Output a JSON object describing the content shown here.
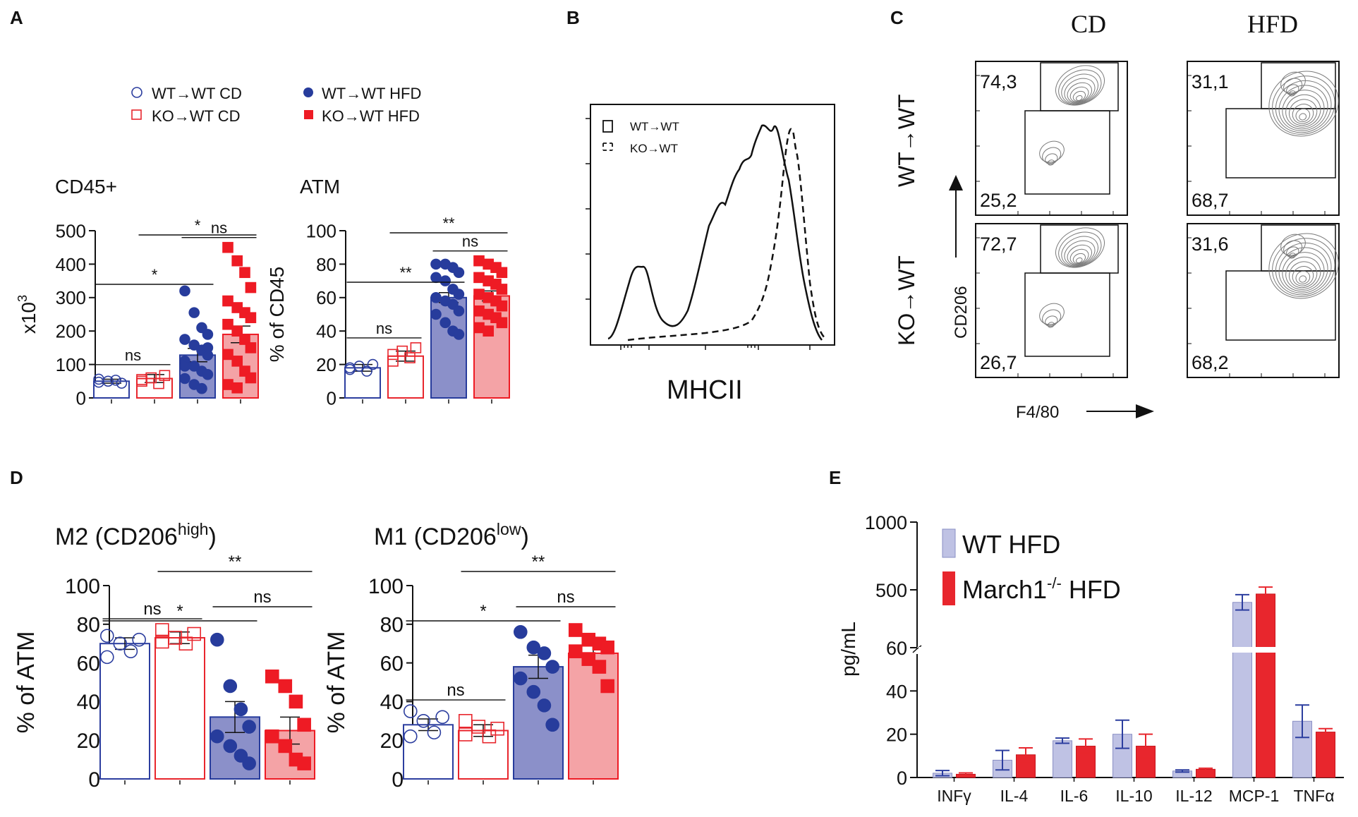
{
  "colors": {
    "wt_cd": "#2c3e9f",
    "ko_cd": "#e8262d",
    "wt_hfd_point": "#273c9c",
    "wt_hfd_fill": "#8b90c9",
    "ko_hfd_point": "#ee1b24",
    "ko_hfd_fill": "#f4a3a6",
    "e_wt_fill": "#bfc2e4",
    "e_march_fill": "#e8262d",
    "e_wt_err": "#2c3e9f",
    "e_march_err": "#e8262d"
  },
  "panels": {
    "A": "A",
    "B": "B",
    "C": "C",
    "D": "D",
    "E": "E"
  },
  "legendA": [
    {
      "label": "WT→WT CD",
      "marker": "open-circle"
    },
    {
      "label": "WT→WT HFD",
      "marker": "filled-circle"
    },
    {
      "label": "KO→WT CD",
      "marker": "open-square"
    },
    {
      "label": "KO→WT HFD",
      "marker": "filled-square"
    }
  ],
  "chart_data": [
    {
      "id": "A-cd45",
      "type": "bar",
      "title": "CD45+",
      "ylabel": "x10",
      "ylabel_sup": "3",
      "ylim": [
        0,
        500
      ],
      "yticks": [
        0,
        100,
        200,
        300,
        400,
        500
      ],
      "categories": [
        "WT→WT CD",
        "KO→WT CD",
        "WT→WT HFD",
        "KO→WT HFD"
      ],
      "values": [
        50,
        58,
        128,
        190
      ],
      "errors": [
        6,
        12,
        20,
        25
      ],
      "points": [
        [
          47,
          50,
          53,
          44,
          56
        ],
        [
          50,
          60,
          43,
          67,
          55
        ],
        [
          320,
          255,
          210,
          190,
          175,
          158,
          143,
          128,
          110,
          95,
          80,
          70,
          58,
          40,
          28,
          150,
          95
        ],
        [
          450,
          410,
          375,
          330,
          290,
          270,
          255,
          240,
          220,
          200,
          175,
          150,
          130,
          110,
          80,
          60,
          40,
          30
        ]
      ],
      "sig": [
        {
          "label": "ns",
          "from": 0,
          "to": 1
        },
        {
          "label": "*",
          "from": 0,
          "to": 2
        },
        {
          "label": "*",
          "from": 1,
          "to": 3
        },
        {
          "label": "ns",
          "from": 2,
          "to": 3
        }
      ]
    },
    {
      "id": "A-atm",
      "type": "bar",
      "title": "ATM",
      "ylabel": "% of CD45",
      "ylim": [
        0,
        100
      ],
      "yticks": [
        0,
        20,
        40,
        60,
        80,
        100
      ],
      "categories": [
        "WT→WT CD",
        "KO→WT CD",
        "WT→WT HFD",
        "KO→WT HFD"
      ],
      "values": [
        18,
        25,
        60,
        61
      ],
      "errors": [
        2,
        3,
        3,
        3
      ],
      "points": [
        [
          17,
          19,
          16,
          20,
          18
        ],
        [
          22,
          28,
          24,
          30,
          26
        ],
        [
          80,
          80,
          78,
          75,
          72,
          70,
          65,
          62,
          60,
          58,
          56,
          52,
          50,
          45,
          40,
          38
        ],
        [
          82,
          80,
          78,
          75,
          72,
          70,
          68,
          65,
          62,
          60,
          58,
          55,
          52,
          50,
          48,
          45,
          42,
          40
        ]
      ],
      "sig": [
        {
          "label": "ns",
          "from": 0,
          "to": 1
        },
        {
          "label": "**",
          "from": 0,
          "to": 2
        },
        {
          "label": "**",
          "from": 1,
          "to": 3
        },
        {
          "label": "ns",
          "from": 2,
          "to": 3
        }
      ]
    },
    {
      "id": "D-m2",
      "type": "bar",
      "title": "M2 (CD206",
      "title_sup": "high",
      "title_end": ")",
      "ylabel": "% of ATM",
      "ylim": [
        0,
        100
      ],
      "yticks": [
        0,
        20,
        40,
        60,
        80,
        100
      ],
      "categories": [
        "WT→WT CD",
        "KO→WT CD",
        "WT→WT HFD",
        "KO→WT HFD"
      ],
      "values": [
        70,
        73,
        32,
        25
      ],
      "errors": [
        3,
        3,
        8,
        7
      ],
      "points": [
        [
          74,
          70,
          66,
          72,
          63
        ],
        [
          77,
          73,
          70,
          75,
          71
        ],
        [
          72,
          48,
          36,
          27,
          22,
          17,
          12,
          8
        ],
        [
          53,
          48,
          40,
          28,
          22,
          17,
          10,
          8
        ]
      ],
      "sig": [
        {
          "label": "ns",
          "from": 0,
          "to": 1
        },
        {
          "label": "*",
          "from": 0,
          "to": 2
        },
        {
          "label": "**",
          "from": 1,
          "to": 3
        },
        {
          "label": "ns",
          "from": 2,
          "to": 3
        }
      ]
    },
    {
      "id": "D-m1",
      "type": "bar",
      "title": "M1 (CD206",
      "title_sup": "low",
      "title_end": ")",
      "ylabel": "% of ATM",
      "ylim": [
        0,
        100
      ],
      "yticks": [
        0,
        20,
        40,
        60,
        80,
        100
      ],
      "categories": [
        "WT→WT CD",
        "KO→WT CD",
        "WT→WT HFD",
        "KO→WT HFD"
      ],
      "values": [
        28,
        25,
        58,
        65
      ],
      "errors": [
        3,
        3,
        6,
        4
      ],
      "points": [
        [
          35,
          30,
          24,
          32,
          22
        ],
        [
          30,
          27,
          22,
          26,
          23
        ],
        [
          76,
          68,
          65,
          58,
          52,
          45,
          38,
          28
        ],
        [
          77,
          72,
          70,
          68,
          66,
          62,
          58,
          48
        ]
      ],
      "sig": [
        {
          "label": "ns",
          "from": 0,
          "to": 1
        },
        {
          "label": "*",
          "from": 0,
          "to": 2
        },
        {
          "label": "**",
          "from": 1,
          "to": 3
        },
        {
          "label": "ns",
          "from": 2,
          "to": 3
        }
      ]
    },
    {
      "id": "E-cytokines",
      "type": "bar",
      "ylabel": "pg/mL",
      "yticks_lower": [
        0,
        20,
        40,
        60
      ],
      "yticks_upper": [
        500,
        1000
      ],
      "axis_break": "between 60 and 500 (segmented axis)",
      "categories": [
        "INFγ",
        "IL-4",
        "IL-6",
        "IL-10",
        "IL-12",
        "MCP-1",
        "TNFα"
      ],
      "series": [
        {
          "name": "WT HFD",
          "values": [
            2,
            8,
            17,
            20,
            3,
            410,
            26
          ],
          "errors": [
            1.2,
            4.5,
            1.2,
            6.5,
            0.5,
            55,
            7.5
          ]
        },
        {
          "name": "March1",
          "name_sup": "-/-",
          "name_end": " HFD",
          "values": [
            1.5,
            10.5,
            14.5,
            14.5,
            3.8,
            470,
            21
          ],
          "errors": [
            0.6,
            3.2,
            3.3,
            5.5,
            0.5,
            50,
            1.6
          ]
        }
      ]
    }
  ],
  "panelB": {
    "xlabel": "MHCII",
    "legend": [
      "WT→WT",
      "KO→WT"
    ]
  },
  "panelC": {
    "col_labels": [
      "CD",
      "HFD"
    ],
    "row_labels": [
      "WT→WT",
      "KO→WT"
    ],
    "xlabel": "F4/80",
    "ylabel": "CD206",
    "plots": [
      {
        "high": "74,3",
        "low": "25,2"
      },
      {
        "high": "31,1",
        "low": "68,7"
      },
      {
        "high": "72,7",
        "low": "26,7"
      },
      {
        "high": "31,6",
        "low": "68,2"
      }
    ]
  }
}
